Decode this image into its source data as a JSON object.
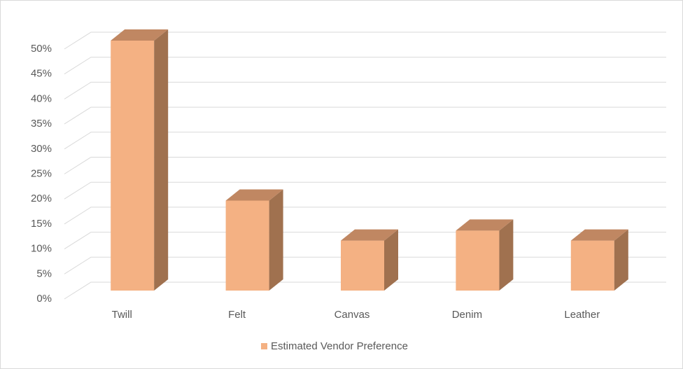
{
  "chart_data": {
    "type": "bar3d",
    "categories": [
      "Twill",
      "Felt",
      "Canvas",
      "Denim",
      "Leather"
    ],
    "series": [
      {
        "name": "Estimated Vendor Preference",
        "color": "#f4b183",
        "values": [
          50,
          18,
          10,
          12,
          10
        ]
      }
    ],
    "ylim": [
      0,
      50
    ],
    "yticks": [
      {
        "value": 0,
        "label": "0%"
      },
      {
        "value": 5,
        "label": "5%"
      },
      {
        "value": 10,
        "label": "10%"
      },
      {
        "value": 15,
        "label": "15%"
      },
      {
        "value": 20,
        "label": "20%"
      },
      {
        "value": 25,
        "label": "25%"
      },
      {
        "value": 30,
        "label": "30%"
      },
      {
        "value": 35,
        "label": "35%"
      },
      {
        "value": 40,
        "label": "40%"
      },
      {
        "value": 45,
        "label": "45%"
      },
      {
        "value": 50,
        "label": "50%"
      }
    ],
    "grid": true,
    "legend": "bottom"
  }
}
